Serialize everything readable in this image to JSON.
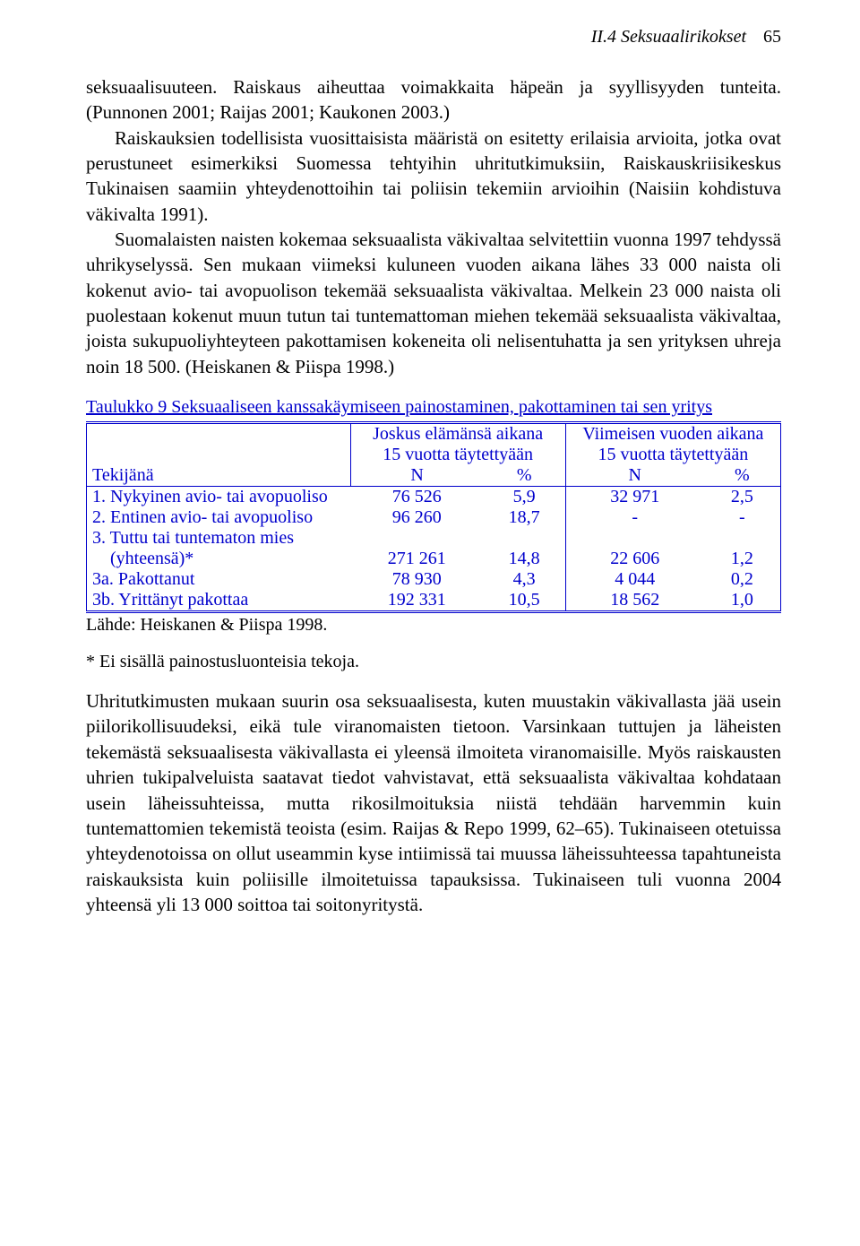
{
  "header": {
    "section": "II.4 Seksuaalirikokset",
    "page_number": "65"
  },
  "paragraph1": {
    "p0": "seksuaalisuuteen. Raiskaus aiheuttaa voimakkaita häpeän ja syyllisyyden tunteita. (Punnonen 2001; Raijas 2001; Kaukonen 2003.)",
    "p1": "Raiskauksien todellisista vuosittaisista määristä on esitetty erilaisia arvioita, jotka ovat perustuneet esimerkiksi Suomessa tehtyihin uhritutkimuksiin, Raiskauskriisikeskus Tukinaisen saamiin yhteydenottoihin tai poliisin tekemiin arvioihin (Naisiin kohdistuva väkivalta 1991).",
    "p2": "Suomalaisten naisten kokemaa seksuaalista väkivaltaa selvitettiin vuonna 1997 tehdyssä uhrikyselyssä. Sen mukaan viimeksi kuluneen vuoden aikana lähes 33 000 naista oli kokenut avio- tai avopuolison tekemää seksuaalista väkivaltaa. Melkein 23 000 naista oli puolestaan kokenut muun tutun tai tuntemattoman miehen tekemää seksuaalista väkivaltaa, joista sukupuoliyhteyteen pakottamisen kokeneita oli nelisentuhatta ja sen yrityksen uhreja noin 18 500. (Heiskanen & Piispa 1998.)"
  },
  "table": {
    "caption": "Taulukko 9  Seksuaaliseen kanssakäymiseen painostaminen, pakottaminen tai sen yritys",
    "head_lifetime_l1": "Joskus elämänsä aikana",
    "head_lifetime_l2": "15 vuotta täytettyään",
    "head_lastyear_l1": "Viimeisen vuoden aikana",
    "head_lastyear_l2": "15 vuotta täytettyään",
    "row_header_label": "Tekijänä",
    "col_N": "N",
    "col_pct": "%",
    "rows": [
      {
        "label": "1. Nykyinen avio- tai avopuoliso",
        "n1": "76 526",
        "p1": "5,9",
        "n2": "32 971",
        "p2": "2,5"
      },
      {
        "label": "2. Entinen avio- tai avopuoliso",
        "n1": "96 260",
        "p1": "18,7",
        "n2": "-",
        "p2": "-"
      },
      {
        "label": "3. Tuttu tai tuntematon mies",
        "n1": "",
        "p1": "",
        "n2": "",
        "p2": ""
      },
      {
        "label": "    (yhteensä)*",
        "n1": "271 261",
        "p1": "14,8",
        "n2": "22 606",
        "p2": "1,2"
      },
      {
        "label": "3a. Pakottanut",
        "n1": "78 930",
        "p1": "4,3",
        "n2": "4 044",
        "p2": "0,2"
      },
      {
        "label": "3b. Yrittänyt pakottaa",
        "n1": "192 331",
        "p1": "10,5",
        "n2": "18 562",
        "p2": "1,0"
      }
    ],
    "source": "Lähde: Heiskanen & Piispa 1998.",
    "footnote": "* Ei sisällä painostusluonteisia tekoja."
  },
  "paragraph2": "Uhritutkimusten mukaan suurin osa seksuaalisesta, kuten muustakin väkivallasta jää usein piilorikollisuudeksi, eikä tule viranomaisten tietoon. Varsinkaan tuttujen ja läheisten tekemästä seksuaalisesta väkivallasta ei yleensä ilmoiteta viranomaisille. Myös raiskausten uhrien tukipalveluista saatavat tiedot vahvistavat, että seksuaalista väkivaltaa kohdataan usein läheissuhteissa, mutta rikosilmoituksia niistä tehdään harvemmin kuin tuntemattomien tekemistä teoista (esim. Raijas & Repo 1999, 62–65). Tukinaiseen otetuissa yhteydenotoissa on ollut useammin kyse intiimissä tai muussa läheissuhteessa tapahtuneista raiskauksista kuin poliisille ilmoitetuissa tapauksissa. Tukinaiseen tuli vuonna 2004 yhteensä yli 13 000 soittoa tai soitonyritystä."
}
